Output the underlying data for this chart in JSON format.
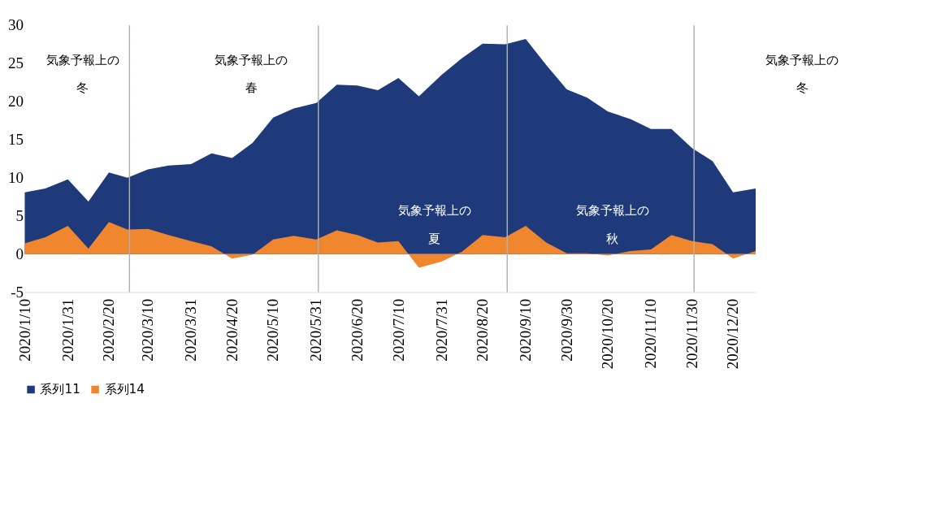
{
  "chart_data": {
    "type": "area",
    "x": [
      "2020-01-10",
      "2020-01-20",
      "2020-01-31",
      "2020-02-10",
      "2020-02-20",
      "2020-02-29",
      "2020-03-10",
      "2020-03-20",
      "2020-03-31",
      "2020-04-10",
      "2020-04-20",
      "2020-04-30",
      "2020-05-10",
      "2020-05-20",
      "2020-05-31",
      "2020-06-10",
      "2020-06-20",
      "2020-06-30",
      "2020-07-10",
      "2020-07-20",
      "2020-07-31",
      "2020-08-10",
      "2020-08-20",
      "2020-08-31",
      "2020-09-10",
      "2020-09-20",
      "2020-09-30",
      "2020-10-10",
      "2020-10-20",
      "2020-10-31",
      "2020-11-10",
      "2020-11-20",
      "2020-11-30",
      "2020-12-10",
      "2020-12-20",
      "2020-12-31"
    ],
    "series": [
      {
        "name": "系列11",
        "color": "#1f3a7a",
        "values": [
          8.1,
          8.6,
          9.8,
          6.9,
          10.7,
          10.0,
          11.1,
          11.6,
          11.8,
          13.2,
          12.6,
          14.6,
          17.9,
          19.1,
          19.8,
          22.2,
          22.1,
          21.5,
          23.1,
          20.7,
          23.5,
          25.7,
          27.6,
          27.5,
          28.2,
          24.8,
          21.6,
          20.5,
          18.7,
          17.7,
          16.4,
          16.4,
          13.9,
          12.2,
          8.1,
          8.6
        ]
      },
      {
        "name": "系列14",
        "color": "#f0862e",
        "values": [
          1.4,
          2.2,
          3.7,
          0.7,
          4.2,
          3.2,
          3.3,
          2.5,
          1.7,
          1.0,
          -0.6,
          -0.1,
          1.9,
          2.4,
          1.9,
          3.1,
          2.5,
          1.5,
          1.7,
          -1.8,
          -1.0,
          0.3,
          2.5,
          2.2,
          3.7,
          1.5,
          0.1,
          0.1,
          -0.2,
          0.4,
          0.6,
          2.5,
          1.7,
          1.3,
          -0.6,
          0.4
        ]
      }
    ],
    "xticks": [
      {
        "value": "2020-01-10",
        "label": "2020/1/10"
      },
      {
        "value": "2020-01-31",
        "label": "2020/1/31"
      },
      {
        "value": "2020-02-20",
        "label": "2020/2/20"
      },
      {
        "value": "2020-03-10",
        "label": "2020/3/10"
      },
      {
        "value": "2020-03-31",
        "label": "2020/3/31"
      },
      {
        "value": "2020-04-20",
        "label": "2020/4/20"
      },
      {
        "value": "2020-05-10",
        "label": "2020/5/10"
      },
      {
        "value": "2020-05-31",
        "label": "2020/5/31"
      },
      {
        "value": "2020-06-20",
        "label": "2020/6/20"
      },
      {
        "value": "2020-07-10",
        "label": "2020/7/10"
      },
      {
        "value": "2020-07-31",
        "label": "2020/7/31"
      },
      {
        "value": "2020-08-20",
        "label": "2020/8/20"
      },
      {
        "value": "2020-09-10",
        "label": "2020/9/10"
      },
      {
        "value": "2020-09-30",
        "label": "2020/9/30"
      },
      {
        "value": "2020-10-20",
        "label": "2020/10/20"
      },
      {
        "value": "2020-11-10",
        "label": "2020/11/10"
      },
      {
        "value": "2020-11-30",
        "label": "2020/11/30"
      },
      {
        "value": "2020-12-20",
        "label": "2020/12/20"
      }
    ],
    "xlim": [
      "2020-01-10",
      "2020-12-31"
    ],
    "ylim": [
      -5,
      30
    ],
    "yticks": [
      -5,
      0,
      5,
      10,
      15,
      20,
      25,
      30
    ],
    "grid": false,
    "legend": "bottom",
    "ref_lines": [
      {
        "axis": "x",
        "value": "2020-03-01",
        "color": "#b0b0b0"
      },
      {
        "axis": "x",
        "value": "2020-06-01",
        "color": "#b0b0b0"
      },
      {
        "axis": "x",
        "value": "2020-09-01",
        "color": "#b0b0b0"
      },
      {
        "axis": "x",
        "value": "2020-12-01",
        "color": "#b0b0b0"
      }
    ],
    "annotations": [
      "気象予報上の冬",
      "気象予報上の春",
      "気象予報上の夏",
      "気象予報上の秋",
      "気象予報上の冬"
    ]
  }
}
